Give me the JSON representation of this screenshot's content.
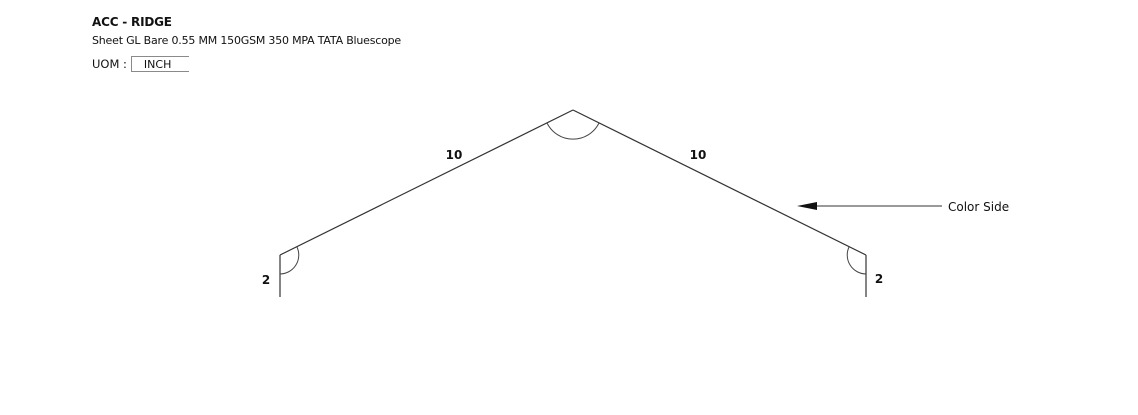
{
  "header": {
    "title": "ACC - RIDGE",
    "subtitle": "Sheet GL Bare 0.55 MM 150GSM 350 MPA TATA Bluescope",
    "uom_label": "UOM :",
    "uom_value": "INCH"
  },
  "profile": {
    "segments": [
      {
        "name": "left-hem",
        "length_label": "2"
      },
      {
        "name": "left-slope",
        "length_label": "10"
      },
      {
        "name": "right-slope",
        "length_label": "10"
      },
      {
        "name": "right-hem",
        "length_label": "2"
      }
    ],
    "color_side_label": "Color Side"
  },
  "colors": {
    "line": "#333333",
    "text": "#111111"
  }
}
